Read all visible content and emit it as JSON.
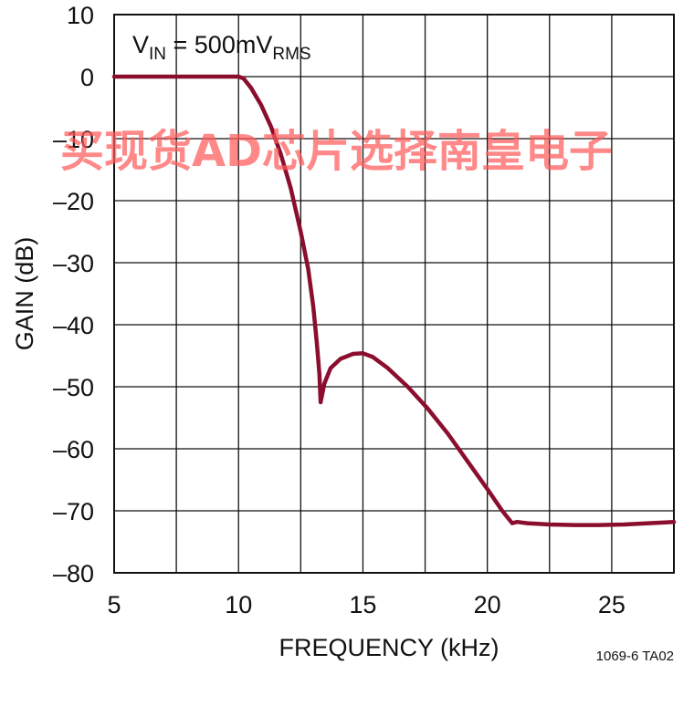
{
  "chart_data": {
    "type": "line",
    "xlabel": "FREQUENCY (kHz)",
    "ylabel": "GAIN (dB)",
    "xlim": [
      5,
      27.5
    ],
    "ylim": [
      -80,
      10
    ],
    "xticks": [
      5,
      10,
      15,
      20,
      25
    ],
    "yticks": [
      10,
      0,
      -10,
      -20,
      -30,
      -40,
      -50,
      -60,
      -70,
      -80
    ],
    "x_gridlines": [
      5,
      7.5,
      10,
      12.5,
      15,
      17.5,
      20,
      22.5,
      25
    ],
    "grid": true,
    "annotation": {
      "main": "V",
      "sub1": "IN",
      "middle": " = 500mV",
      "sub2": "RMS"
    },
    "series": [
      {
        "color": "#8b0e2e",
        "x": [
          5,
          7,
          9,
          9.8,
          10,
          10.2,
          10.5,
          10.9,
          11.3,
          11.7,
          12.1,
          12.5,
          12.8,
          13.0,
          13.15,
          13.25,
          13.3,
          13.45,
          13.7,
          14.1,
          14.6,
          15.0,
          15.4,
          16.0,
          16.8,
          17.6,
          18.4,
          19.2,
          20.0,
          20.6,
          21.0,
          21.2,
          21.6,
          22.5,
          23.5,
          24.5,
          25.5,
          26.5,
          27.5
        ],
        "y": [
          0,
          0,
          0,
          0,
          0,
          -0.3,
          -1.8,
          -4.5,
          -8,
          -12.5,
          -18,
          -25,
          -31,
          -37,
          -43,
          -48,
          -52.5,
          -49.5,
          -47,
          -45.5,
          -44.7,
          -44.6,
          -45.2,
          -47,
          -50,
          -53.5,
          -57.5,
          -62,
          -66.5,
          -70,
          -72,
          -71.8,
          -72,
          -72.2,
          -72.3,
          -72.3,
          -72.2,
          -72.0,
          -71.8
        ]
      }
    ]
  },
  "watermark": {
    "text": "买现货AD芯片选择南皇电子",
    "color": "#ff5a5a"
  },
  "figure_id": "1069-6 TA02"
}
